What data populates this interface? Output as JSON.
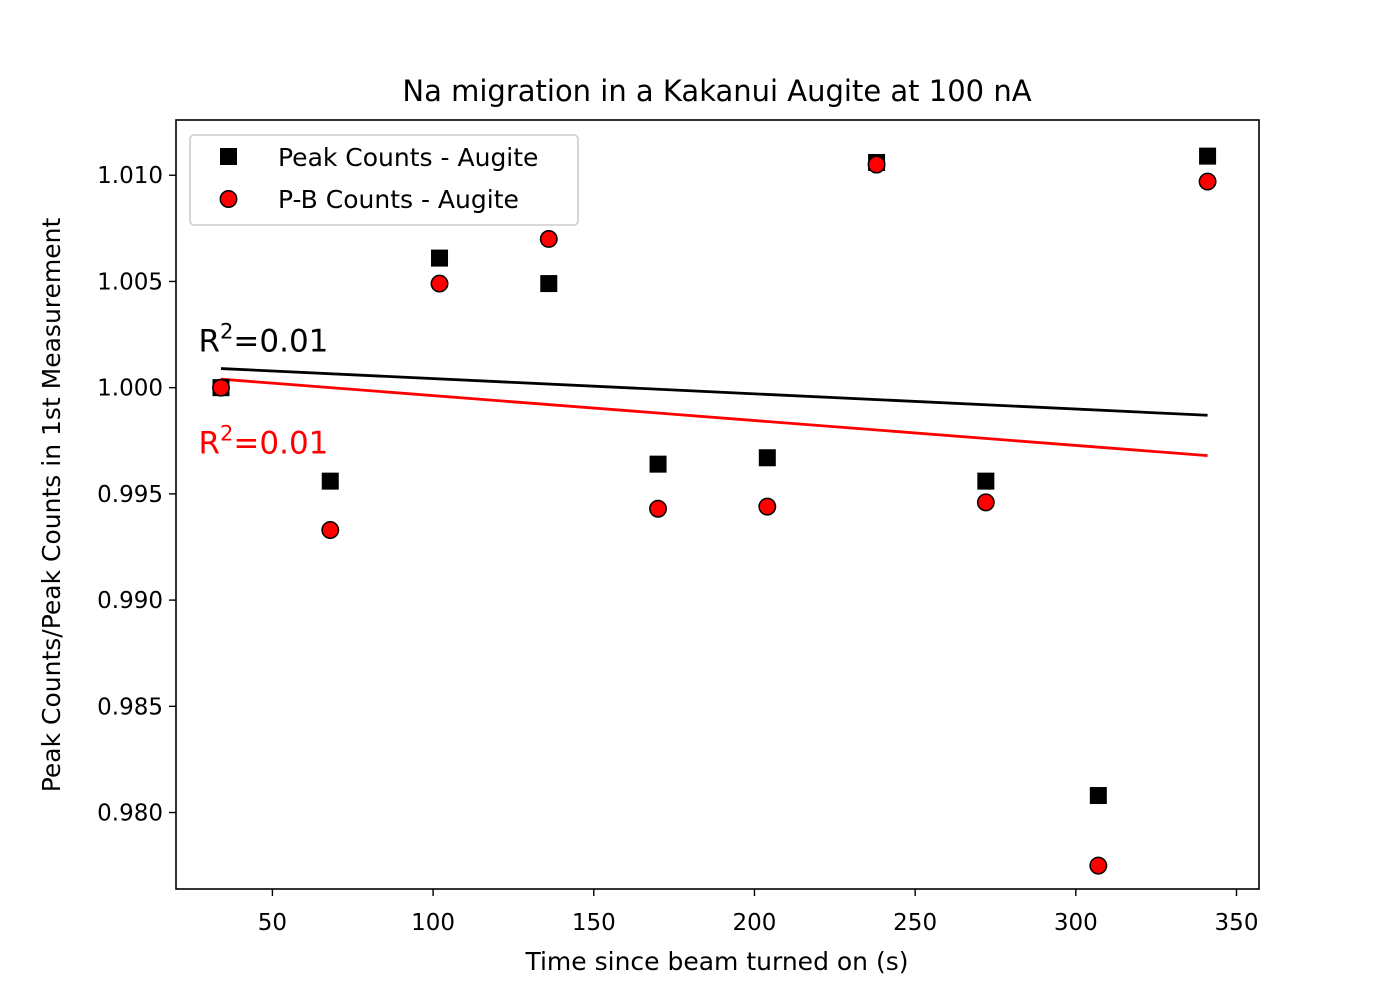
{
  "chart_data": {
    "type": "scatter",
    "title": "Na migration in a Kakanui Augite at 100 nA",
    "xlabel": "Time since beam turned on (s)",
    "ylabel": "Peak Counts/Peak Counts in 1st Measurement",
    "xlim": [
      20,
      357
    ],
    "ylim": [
      0.9764,
      1.0126
    ],
    "xticks": [
      50,
      100,
      150,
      200,
      250,
      300,
      350
    ],
    "yticks": [
      0.98,
      0.985,
      0.99,
      0.995,
      1.0,
      1.005,
      1.01
    ],
    "ytick_labels": [
      "0.980",
      "0.985",
      "0.990",
      "0.995",
      "1.000",
      "1.005",
      "1.010"
    ],
    "grid": false,
    "legend_position": "top-left",
    "series": [
      {
        "name": "Peak Counts - Augite",
        "marker": "square",
        "color": "#000000",
        "x": [
          34,
          68,
          102,
          136,
          170,
          204,
          238,
          272,
          307,
          341
        ],
        "y": [
          1.0,
          0.9956,
          1.0061,
          1.0049,
          0.9964,
          0.9967,
          1.0106,
          0.9956,
          0.9808,
          1.0109
        ],
        "fit": {
          "x": [
            34,
            341
          ],
          "y": [
            1.0009,
            0.9987
          ],
          "color": "#000000"
        }
      },
      {
        "name": "P-B Counts - Augite",
        "marker": "circle",
        "color": "#ff0000",
        "edge_color": "#000000",
        "x": [
          34,
          68,
          102,
          136,
          170,
          204,
          238,
          272,
          307,
          341
        ],
        "y": [
          1.0,
          0.9933,
          1.0049,
          1.007,
          0.9943,
          0.9944,
          1.0105,
          0.9946,
          0.9775,
          1.0097
        ],
        "fit": {
          "x": [
            34,
            341
          ],
          "y": [
            1.0004,
            0.9968
          ],
          "color": "#ff0000"
        }
      }
    ],
    "annotations": [
      {
        "base": "R",
        "sup": "2",
        "rest": "=0.01",
        "color": "#000000",
        "x": 27,
        "y": 1.0017
      },
      {
        "base": "R",
        "sup": "2",
        "rest": "=0.01",
        "color": "#ff0000",
        "x": 27,
        "y": 0.9969
      }
    ]
  }
}
